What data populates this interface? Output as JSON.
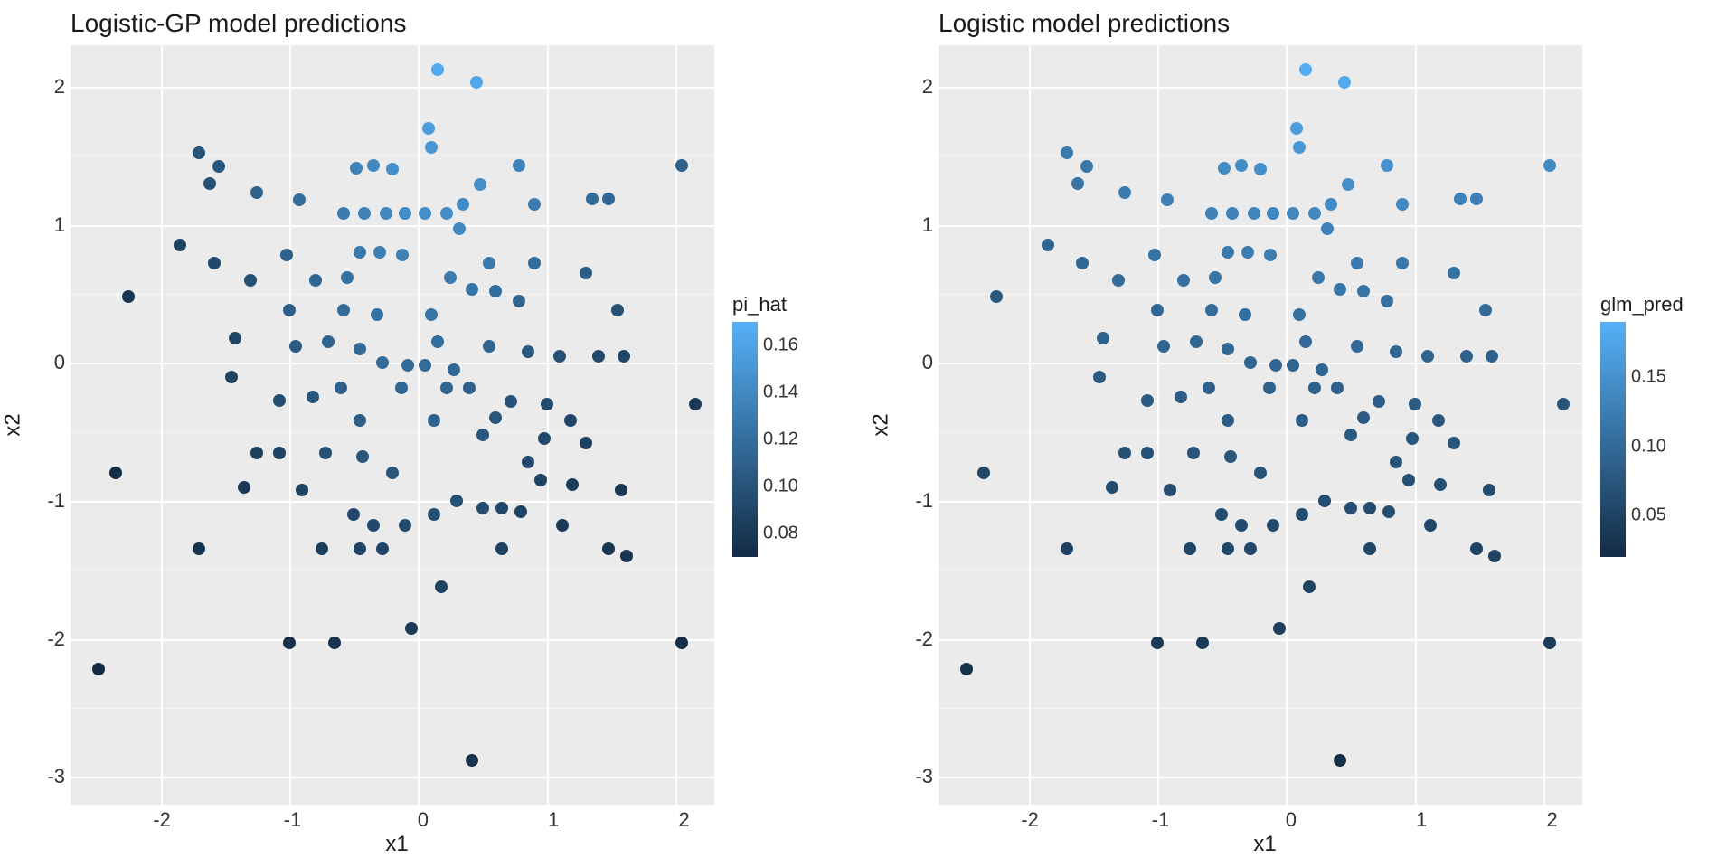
{
  "panels": [
    {
      "title": "Logistic-GP model predictions",
      "xlabel": "x1",
      "ylabel": "x2",
      "xlim": [
        -2.7,
        2.3
      ],
      "ylim": [
        -3.2,
        2.3
      ],
      "xticks": [
        -2,
        -1,
        0,
        1,
        2
      ],
      "yticks": [
        -3,
        -2,
        -1,
        0,
        1,
        2
      ],
      "background_color": "#ebebeb",
      "grid_color": "#ffffff",
      "point_radius": 7,
      "color_scale": {
        "low": "#132b43",
        "high": "#56b1f7",
        "vmin": 0.07,
        "vmax": 0.17
      },
      "legend": {
        "title": "pi_hat",
        "ticks": [
          0.08,
          0.1,
          0.12,
          0.14,
          0.16
        ],
        "gradient_top": "#56b1f7",
        "gradient_bottom": "#132b43"
      }
    },
    {
      "title": "Logistic model predictions",
      "xlabel": "x1",
      "ylabel": "x2",
      "xlim": [
        -2.7,
        2.3
      ],
      "ylim": [
        -3.2,
        2.3
      ],
      "xticks": [
        -2,
        -1,
        0,
        1,
        2
      ],
      "yticks": [
        -3,
        -2,
        -1,
        0,
        1,
        2
      ],
      "background_color": "#ebebeb",
      "grid_color": "#ffffff",
      "point_radius": 7,
      "color_scale": {
        "low": "#132b43",
        "high": "#56b1f7",
        "vmin": 0.02,
        "vmax": 0.19
      },
      "legend": {
        "title": "glm_pred",
        "ticks": [
          0.05,
          0.1,
          0.15
        ],
        "gradient_top": "#56b1f7",
        "gradient_bottom": "#132b43"
      }
    }
  ],
  "shared_points": [
    {
      "x1": 0.15,
      "x2": 2.12,
      "v1": 0.165,
      "v2": 0.185
    },
    {
      "x1": 0.45,
      "x2": 2.03,
      "v1": 0.162,
      "v2": 0.18
    },
    {
      "x1": 0.08,
      "x2": 1.7,
      "v1": 0.155,
      "v2": 0.165
    },
    {
      "x1": 0.1,
      "x2": 1.56,
      "v1": 0.15,
      "v2": 0.158
    },
    {
      "x1": -1.7,
      "x2": 1.52,
      "v1": 0.1,
      "v2": 0.12
    },
    {
      "x1": -1.55,
      "x2": 1.42,
      "v1": 0.102,
      "v2": 0.118
    },
    {
      "x1": -0.48,
      "x2": 1.41,
      "v1": 0.135,
      "v2": 0.14
    },
    {
      "x1": -0.35,
      "x2": 1.43,
      "v1": 0.14,
      "v2": 0.145
    },
    {
      "x1": -0.2,
      "x2": 1.4,
      "v1": 0.145,
      "v2": 0.148
    },
    {
      "x1": 0.78,
      "x2": 1.43,
      "v1": 0.135,
      "v2": 0.15
    },
    {
      "x1": 2.05,
      "x2": 1.43,
      "v1": 0.11,
      "v2": 0.14
    },
    {
      "x1": -1.62,
      "x2": 1.3,
      "v1": 0.098,
      "v2": 0.112
    },
    {
      "x1": -1.25,
      "x2": 1.23,
      "v1": 0.11,
      "v2": 0.122
    },
    {
      "x1": -0.92,
      "x2": 1.18,
      "v1": 0.12,
      "v2": 0.128
    },
    {
      "x1": 0.48,
      "x2": 1.29,
      "v1": 0.145,
      "v2": 0.148
    },
    {
      "x1": 0.35,
      "x2": 1.15,
      "v1": 0.142,
      "v2": 0.142
    },
    {
      "x1": 0.9,
      "x2": 1.15,
      "v1": 0.13,
      "v2": 0.138
    },
    {
      "x1": 1.35,
      "x2": 1.19,
      "v1": 0.118,
      "v2": 0.13
    },
    {
      "x1": 1.48,
      "x2": 1.19,
      "v1": 0.115,
      "v2": 0.128
    },
    {
      "x1": -0.58,
      "x2": 1.08,
      "v1": 0.13,
      "v2": 0.13
    },
    {
      "x1": -0.42,
      "x2": 1.08,
      "v1": 0.135,
      "v2": 0.132
    },
    {
      "x1": -0.25,
      "x2": 1.08,
      "v1": 0.14,
      "v2": 0.135
    },
    {
      "x1": -0.1,
      "x2": 1.08,
      "v1": 0.143,
      "v2": 0.137
    },
    {
      "x1": 0.05,
      "x2": 1.08,
      "v1": 0.145,
      "v2": 0.138
    },
    {
      "x1": 0.22,
      "x2": 1.08,
      "v1": 0.143,
      "v2": 0.138
    },
    {
      "x1": 0.32,
      "x2": 0.97,
      "v1": 0.14,
      "v2": 0.132
    },
    {
      "x1": -1.85,
      "x2": 0.85,
      "v1": 0.088,
      "v2": 0.095
    },
    {
      "x1": -1.58,
      "x2": 0.72,
      "v1": 0.092,
      "v2": 0.098
    },
    {
      "x1": -1.02,
      "x2": 0.78,
      "v1": 0.11,
      "v2": 0.11
    },
    {
      "x1": -0.45,
      "x2": 0.8,
      "v1": 0.128,
      "v2": 0.12
    },
    {
      "x1": -0.3,
      "x2": 0.8,
      "v1": 0.132,
      "v2": 0.123
    },
    {
      "x1": -0.12,
      "x2": 0.78,
      "v1": 0.135,
      "v2": 0.125
    },
    {
      "x1": 0.55,
      "x2": 0.72,
      "v1": 0.128,
      "v2": 0.122
    },
    {
      "x1": 0.9,
      "x2": 0.72,
      "v1": 0.118,
      "v2": 0.118
    },
    {
      "x1": 1.3,
      "x2": 0.65,
      "v1": 0.108,
      "v2": 0.11
    },
    {
      "x1": -1.3,
      "x2": 0.6,
      "v1": 0.098,
      "v2": 0.1
    },
    {
      "x1": -0.8,
      "x2": 0.6,
      "v1": 0.115,
      "v2": 0.108
    },
    {
      "x1": -0.55,
      "x2": 0.62,
      "v1": 0.122,
      "v2": 0.112
    },
    {
      "x1": 0.25,
      "x2": 0.62,
      "v1": 0.13,
      "v2": 0.118
    },
    {
      "x1": 0.42,
      "x2": 0.53,
      "v1": 0.125,
      "v2": 0.115
    },
    {
      "x1": 0.6,
      "x2": 0.52,
      "v1": 0.12,
      "v2": 0.112
    },
    {
      "x1": 0.78,
      "x2": 0.45,
      "v1": 0.113,
      "v2": 0.108
    },
    {
      "x1": -2.25,
      "x2": 0.48,
      "v1": 0.078,
      "v2": 0.078
    },
    {
      "x1": -1.0,
      "x2": 0.38,
      "v1": 0.108,
      "v2": 0.098
    },
    {
      "x1": -0.58,
      "x2": 0.38,
      "v1": 0.118,
      "v2": 0.103
    },
    {
      "x1": -0.32,
      "x2": 0.35,
      "v1": 0.122,
      "v2": 0.105
    },
    {
      "x1": 0.1,
      "x2": 0.35,
      "v1": 0.125,
      "v2": 0.107
    },
    {
      "x1": 1.55,
      "x2": 0.38,
      "v1": 0.098,
      "v2": 0.1
    },
    {
      "x1": -1.42,
      "x2": 0.18,
      "v1": 0.09,
      "v2": 0.088
    },
    {
      "x1": -0.95,
      "x2": 0.12,
      "v1": 0.105,
      "v2": 0.092
    },
    {
      "x1": -0.7,
      "x2": 0.15,
      "v1": 0.112,
      "v2": 0.095
    },
    {
      "x1": -0.45,
      "x2": 0.1,
      "v1": 0.116,
      "v2": 0.097
    },
    {
      "x1": 0.15,
      "x2": 0.15,
      "v1": 0.12,
      "v2": 0.1
    },
    {
      "x1": 0.55,
      "x2": 0.12,
      "v1": 0.113,
      "v2": 0.098
    },
    {
      "x1": 0.85,
      "x2": 0.08,
      "v1": 0.105,
      "v2": 0.095
    },
    {
      "x1": 1.1,
      "x2": 0.05,
      "v1": 0.098,
      "v2": 0.092
    },
    {
      "x1": 1.4,
      "x2": 0.05,
      "v1": 0.092,
      "v2": 0.09
    },
    {
      "x1": 1.6,
      "x2": 0.05,
      "v1": 0.09,
      "v2": 0.088
    },
    {
      "x1": -0.28,
      "x2": 0.0,
      "v1": 0.118,
      "v2": 0.095
    },
    {
      "x1": -0.08,
      "x2": -0.02,
      "v1": 0.118,
      "v2": 0.095
    },
    {
      "x1": 0.05,
      "x2": -0.02,
      "v1": 0.118,
      "v2": 0.095
    },
    {
      "x1": 0.28,
      "x2": -0.05,
      "v1": 0.115,
      "v2": 0.093
    },
    {
      "x1": -1.45,
      "x2": -0.1,
      "v1": 0.088,
      "v2": 0.08
    },
    {
      "x1": -0.6,
      "x2": -0.18,
      "v1": 0.11,
      "v2": 0.088
    },
    {
      "x1": -0.13,
      "x2": -0.18,
      "v1": 0.115,
      "v2": 0.09
    },
    {
      "x1": 0.22,
      "x2": -0.18,
      "v1": 0.113,
      "v2": 0.089
    },
    {
      "x1": 0.4,
      "x2": -0.18,
      "v1": 0.11,
      "v2": 0.088
    },
    {
      "x1": -1.08,
      "x2": -0.27,
      "v1": 0.095,
      "v2": 0.08
    },
    {
      "x1": -0.82,
      "x2": -0.25,
      "v1": 0.102,
      "v2": 0.083
    },
    {
      "x1": 0.72,
      "x2": -0.28,
      "v1": 0.1,
      "v2": 0.083
    },
    {
      "x1": 1.0,
      "x2": -0.3,
      "v1": 0.094,
      "v2": 0.08
    },
    {
      "x1": 2.15,
      "x2": -0.3,
      "v1": 0.082,
      "v2": 0.075
    },
    {
      "x1": -0.45,
      "x2": -0.42,
      "v1": 0.108,
      "v2": 0.082
    },
    {
      "x1": 0.12,
      "x2": -0.42,
      "v1": 0.11,
      "v2": 0.083
    },
    {
      "x1": 0.6,
      "x2": -0.4,
      "v1": 0.102,
      "v2": 0.08
    },
    {
      "x1": 1.18,
      "x2": -0.42,
      "v1": 0.09,
      "v2": 0.076
    },
    {
      "x1": 0.5,
      "x2": -0.52,
      "v1": 0.102,
      "v2": 0.078
    },
    {
      "x1": 0.98,
      "x2": -0.55,
      "v1": 0.092,
      "v2": 0.074
    },
    {
      "x1": 1.3,
      "x2": -0.58,
      "v1": 0.086,
      "v2": 0.072
    },
    {
      "x1": -1.25,
      "x2": -0.65,
      "v1": 0.085,
      "v2": 0.068
    },
    {
      "x1": -1.08,
      "x2": -0.65,
      "v1": 0.088,
      "v2": 0.07
    },
    {
      "x1": -0.72,
      "x2": -0.65,
      "v1": 0.098,
      "v2": 0.073
    },
    {
      "x1": -0.43,
      "x2": -0.68,
      "v1": 0.102,
      "v2": 0.074
    },
    {
      "x1": 0.85,
      "x2": -0.72,
      "v1": 0.092,
      "v2": 0.07
    },
    {
      "x1": -2.35,
      "x2": -0.8,
      "v1": 0.072,
      "v2": 0.055
    },
    {
      "x1": -0.2,
      "x2": -0.8,
      "v1": 0.102,
      "v2": 0.072
    },
    {
      "x1": 0.95,
      "x2": -0.85,
      "v1": 0.088,
      "v2": 0.066
    },
    {
      "x1": 1.2,
      "x2": -0.88,
      "v1": 0.084,
      "v2": 0.064
    },
    {
      "x1": -1.35,
      "x2": -0.9,
      "v1": 0.08,
      "v2": 0.06
    },
    {
      "x1": -0.9,
      "x2": -0.92,
      "v1": 0.088,
      "v2": 0.063
    },
    {
      "x1": 1.58,
      "x2": -0.92,
      "v1": 0.08,
      "v2": 0.062
    },
    {
      "x1": 0.3,
      "x2": -1.0,
      "v1": 0.098,
      "v2": 0.065
    },
    {
      "x1": 0.5,
      "x2": -1.05,
      "v1": 0.094,
      "v2": 0.063
    },
    {
      "x1": 0.65,
      "x2": -1.05,
      "v1": 0.092,
      "v2": 0.062
    },
    {
      "x1": 0.8,
      "x2": -1.08,
      "v1": 0.088,
      "v2": 0.06
    },
    {
      "x1": 0.12,
      "x2": -1.1,
      "v1": 0.098,
      "v2": 0.063
    },
    {
      "x1": -0.5,
      "x2": -1.1,
      "v1": 0.092,
      "v2": 0.062
    },
    {
      "x1": -0.35,
      "x2": -1.18,
      "v1": 0.092,
      "v2": 0.06
    },
    {
      "x1": -0.1,
      "x2": -1.18,
      "v1": 0.094,
      "v2": 0.06
    },
    {
      "x1": 1.12,
      "x2": -1.18,
      "v1": 0.082,
      "v2": 0.056
    },
    {
      "x1": -1.7,
      "x2": -1.35,
      "v1": 0.075,
      "v2": 0.048
    },
    {
      "x1": -0.75,
      "x2": -1.35,
      "v1": 0.085,
      "v2": 0.054
    },
    {
      "x1": -0.45,
      "x2": -1.35,
      "v1": 0.088,
      "v2": 0.055
    },
    {
      "x1": -0.28,
      "x2": -1.35,
      "v1": 0.09,
      "v2": 0.055
    },
    {
      "x1": 0.65,
      "x2": -1.35,
      "v1": 0.086,
      "v2": 0.054
    },
    {
      "x1": 1.48,
      "x2": -1.35,
      "v1": 0.078,
      "v2": 0.051
    },
    {
      "x1": 1.62,
      "x2": -1.4,
      "v1": 0.077,
      "v2": 0.05
    },
    {
      "x1": 0.18,
      "x2": -1.62,
      "v1": 0.088,
      "v2": 0.05
    },
    {
      "x1": -0.05,
      "x2": -1.92,
      "v1": 0.082,
      "v2": 0.043
    },
    {
      "x1": -1.0,
      "x2": -2.03,
      "v1": 0.074,
      "v2": 0.038
    },
    {
      "x1": -0.65,
      "x2": -2.03,
      "v1": 0.077,
      "v2": 0.039
    },
    {
      "x1": 2.05,
      "x2": -2.03,
      "v1": 0.072,
      "v2": 0.04
    },
    {
      "x1": -2.48,
      "x2": -2.22,
      "v1": 0.068,
      "v2": 0.028
    },
    {
      "x1": 0.42,
      "x2": -2.88,
      "v1": 0.075,
      "v2": 0.025
    }
  ]
}
